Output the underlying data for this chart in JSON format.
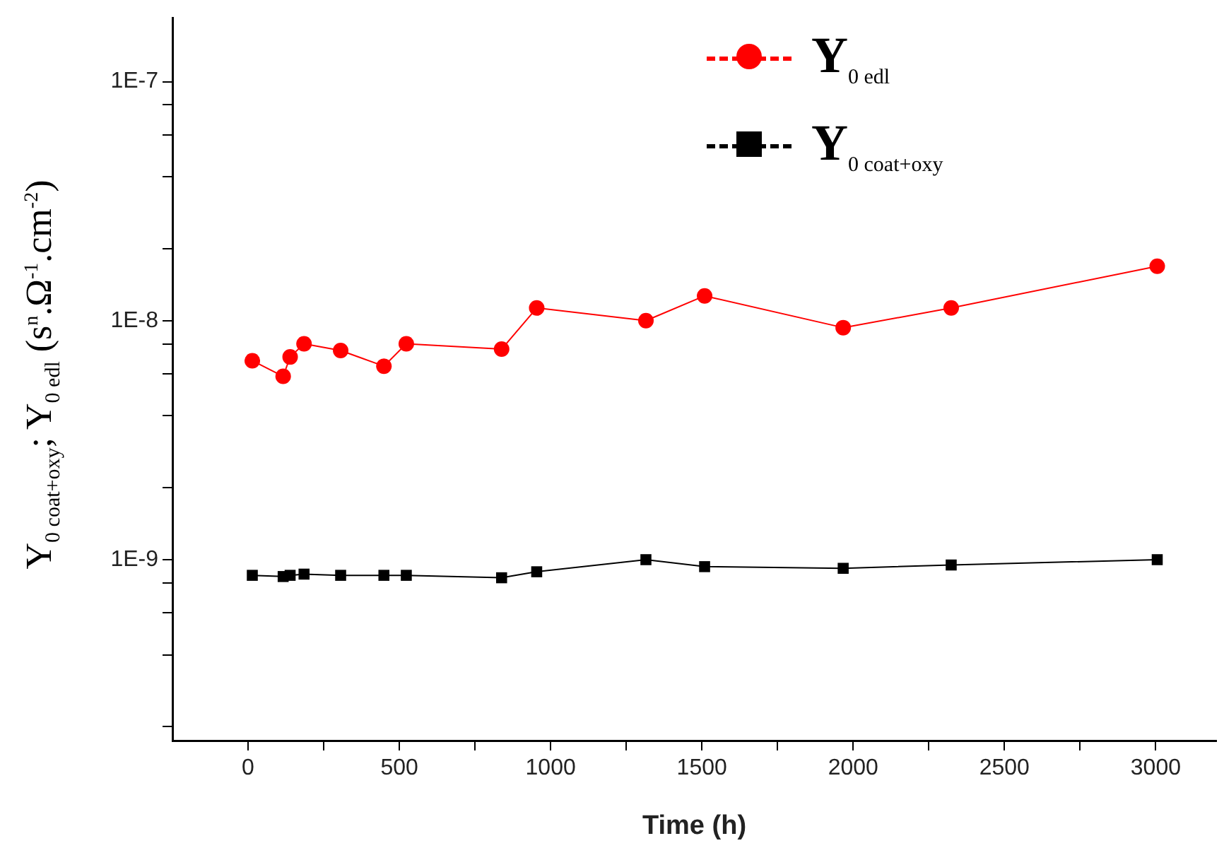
{
  "chart_data": {
    "type": "line",
    "xlabel": "Time (h)",
    "ylabel": "Y$_{0 coat+oxy}$; Y$_{0 edl}$  (s$^{n}$.Ω$^{-1}$.cm$^{-2}$)",
    "x": [
      14,
      116,
      139,
      185,
      306,
      449,
      523,
      838,
      954,
      1315,
      1509,
      1967,
      2324,
      3005
    ],
    "series": [
      {
        "name": "Y$_{0 edl}$",
        "color": "#ff0000",
        "marker": "circle",
        "values": [
          6.8e-09,
          5.85e-09,
          7.05e-09,
          8e-09,
          7.5e-09,
          6.45e-09,
          8e-09,
          7.6e-09,
          1.13e-08,
          1e-08,
          1.27e-08,
          9.35e-09,
          1.13e-08,
          1.69e-08
        ]
      },
      {
        "name": "Y$_{0 coat+oxy}$",
        "color": "#000000",
        "marker": "square",
        "values": [
          8.6e-10,
          8.5e-10,
          8.6e-10,
          8.7e-10,
          8.6e-10,
          8.6e-10,
          8.6e-10,
          8.4e-10,
          8.9e-10,
          1e-09,
          9.35e-10,
          9.2e-10,
          9.5e-10,
          1e-09
        ]
      }
    ],
    "log": "y",
    "grid": false,
    "legend": "top right",
    "line_style": "solid",
    "xlim": [
      -250,
      3200
    ],
    "xticks": [
      0,
      {
        "value": 250,
        "label": null
      },
      500,
      {
        "value": 750,
        "label": null
      },
      1000,
      {
        "value": 1250,
        "label": null
      },
      1500,
      {
        "value": 1750,
        "label": null
      },
      2000,
      {
        "value": 2250,
        "label": null
      },
      2500,
      {
        "value": 2750,
        "label": null
      },
      3000
    ],
    "ylim": [
      1.75e-10,
      1.85e-07
    ],
    "yticks": [
      {
        "value": 2e-10,
        "label": null
      },
      {
        "value": 4e-10,
        "label": null
      },
      {
        "value": 6e-10,
        "label": null
      },
      {
        "value": 8e-10,
        "label": null
      },
      {
        "value": 1e-09,
        "label": "1E-9"
      },
      {
        "value": 2e-09,
        "label": null
      },
      {
        "value": 4e-09,
        "label": null
      },
      {
        "value": 6e-09,
        "label": null
      },
      {
        "value": 8e-09,
        "label": null
      },
      {
        "value": 1e-08,
        "label": "1E-8"
      },
      {
        "value": 2e-08,
        "label": null
      },
      {
        "value": 4e-08,
        "label": null
      },
      {
        "value": 6e-08,
        "label": null
      },
      {
        "value": 8e-08,
        "label": null
      },
      {
        "value": 1e-07,
        "label": "1E-7"
      }
    ]
  }
}
